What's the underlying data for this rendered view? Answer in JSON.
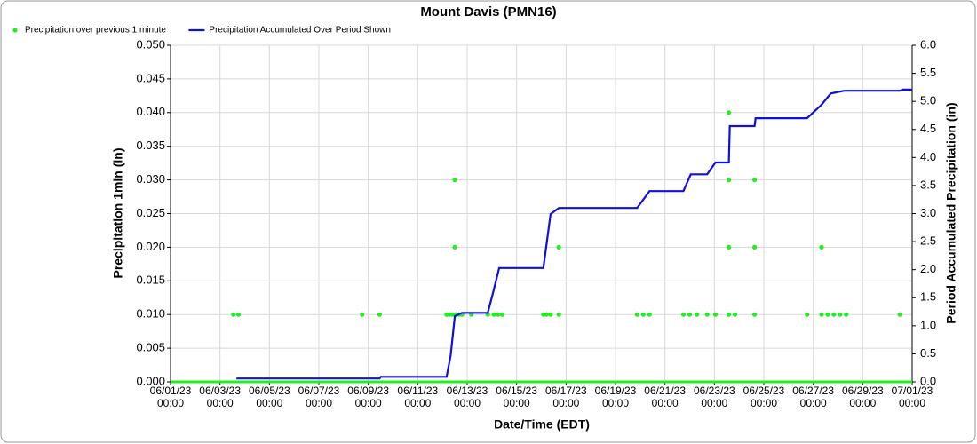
{
  "chart_data": {
    "type": "line",
    "title": "Mount Davis (PMN16)",
    "x_label": "Date/Time (EDT)",
    "y_label": "Precipitation 1min (in)",
    "y2_label": "Period Accumulated Precipitation (in)",
    "xlim": [
      "06/01/23 00:00",
      "07/01/23 00:00"
    ],
    "xticks": [
      "06/01/23 00:00",
      "06/03/23 00:00",
      "06/05/23 00:00",
      "06/07/23 00:00",
      "06/09/23 00:00",
      "06/11/23 00:00",
      "06/13/23 00:00",
      "06/15/23 00:00",
      "06/17/23 00:00",
      "06/19/23 00:00",
      "06/21/23 00:00",
      "06/23/23 00:00",
      "06/25/23 00:00",
      "06/27/23 00:00",
      "06/29/23 00:00",
      "07/01/23 00:00"
    ],
    "ylim": [
      0,
      0.05
    ],
    "yticks": [
      {
        "value": 0,
        "label": "0.000"
      },
      {
        "value": 0.005,
        "label": "0.005"
      },
      {
        "value": 0.01,
        "label": "0.010"
      },
      {
        "value": 0.015,
        "label": "0.015"
      },
      {
        "value": 0.02,
        "label": "0.020"
      },
      {
        "value": 0.025,
        "label": "0.025"
      },
      {
        "value": 0.03,
        "label": "0.030"
      },
      {
        "value": 0.035,
        "label": "0.035"
      },
      {
        "value": 0.04,
        "label": "0.040"
      },
      {
        "value": 0.045,
        "label": "0.045"
      },
      {
        "value": 0.05,
        "label": "0.050"
      }
    ],
    "y2lim": [
      0,
      6
    ],
    "y2ticks": [
      {
        "value": 0,
        "label": "0.0"
      },
      {
        "value": 0.5,
        "label": "0.5"
      },
      {
        "value": 1,
        "label": "1.0"
      },
      {
        "value": 1.5,
        "label": "1.5"
      },
      {
        "value": 2,
        "label": "2.0"
      },
      {
        "value": 2.5,
        "label": "2.5"
      },
      {
        "value": 3,
        "label": "3.0"
      },
      {
        "value": 3.5,
        "label": "3.5"
      },
      {
        "value": 4,
        "label": "4.0"
      },
      {
        "value": 4.5,
        "label": "4.5"
      },
      {
        "value": 5,
        "label": "5.0"
      },
      {
        "value": 5.5,
        "label": "5.5"
      },
      {
        "value": 6,
        "label": "6.0"
      }
    ],
    "grid": true,
    "series": [
      {
        "name": "Precipitation over previous 1 minute",
        "color": "#22ee22",
        "kind": "scatter",
        "x": [
          "06/03/23 13:00",
          "06/03/23 18:00",
          "06/08/23 18:00",
          "06/09/23 11:00",
          "06/12/23 04:00",
          "06/12/23 07:00",
          "06/12/23 10:00",
          "06/12/23 12:00",
          "06/12/23 12:00",
          "06/12/23 13:00",
          "06/12/23 16:00",
          "06/12/23 19:00",
          "06/13/23 04:00",
          "06/13/23 20:00",
          "06/14/23 02:00",
          "06/14/23 06:00",
          "06/14/23 10:00",
          "06/16/23 02:00",
          "06/16/23 05:00",
          "06/16/23 09:00",
          "06/16/23 17:00",
          "06/16/23 17:00",
          "06/19/23 21:00",
          "06/20/23 03:00",
          "06/20/23 09:00",
          "06/21/23 18:00",
          "06/22/23 00:00",
          "06/22/23 07:00",
          "06/22/23 17:00",
          "06/23/23 01:00",
          "06/23/23 14:00",
          "06/23/23 14:00",
          "06/23/23 14:00",
          "06/23/23 14:00",
          "06/23/23 20:00",
          "06/24/23 15:00",
          "06/24/23 15:00",
          "06/24/23 15:00",
          "06/26/23 18:00",
          "06/27/23 08:00",
          "06/27/23 08:00",
          "06/27/23 14:00",
          "06/27/23 20:00",
          "06/28/23 02:00",
          "06/28/23 08:00",
          "06/30/23 12:00"
        ],
        "values": [
          0.01,
          0.01,
          0.01,
          0.01,
          0.01,
          0.01,
          0.01,
          0.03,
          0.02,
          0.01,
          0.01,
          0.01,
          0.01,
          0.01,
          0.01,
          0.01,
          0.01,
          0.01,
          0.01,
          0.01,
          0.02,
          0.01,
          0.01,
          0.01,
          0.01,
          0.01,
          0.01,
          0.01,
          0.01,
          0.01,
          0.04,
          0.03,
          0.02,
          0.01,
          0.01,
          0.03,
          0.02,
          0.01,
          0.01,
          0.02,
          0.01,
          0.01,
          0.01,
          0.01,
          0.01,
          0.01
        ]
      },
      {
        "name": "Precipitation Accumulated Over Period Shown",
        "color": "#1010dd",
        "kind": "line",
        "axis": "y2",
        "x": [
          "06/03/23 16:00",
          "06/09/23 11:00",
          "06/09/23 12:00",
          "06/12/23 04:00",
          "06/12/23 08:00",
          "06/12/23 12:00",
          "06/12/23 19:00",
          "06/13/23 20:00",
          "06/14/23 01:00",
          "06/14/23 07:00",
          "06/16/23 02:00",
          "06/16/23 09:00",
          "06/16/23 17:00",
          "06/19/23 21:00",
          "06/20/23 09:00",
          "06/21/23 18:00",
          "06/22/23 01:00",
          "06/22/23 17:00",
          "06/23/23 01:00",
          "06/23/23 14:00",
          "06/23/23 15:00",
          "06/24/23 15:00",
          "06/24/23 16:00",
          "06/26/23 18:00",
          "06/27/23 08:00",
          "06/27/23 17:00",
          "06/28/23 06:00",
          "06/30/23 12:00",
          "06/30/23 15:00",
          "07/01/23 00:00"
        ],
        "values": [
          0.06,
          0.06,
          0.09,
          0.09,
          0.47,
          1.17,
          1.23,
          1.23,
          1.58,
          2.03,
          2.03,
          2.99,
          3.1,
          3.1,
          3.4,
          3.4,
          3.7,
          3.7,
          3.91,
          3.91,
          4.56,
          4.56,
          4.7,
          4.7,
          4.94,
          5.14,
          5.19,
          5.19,
          5.21,
          5.21
        ]
      }
    ]
  }
}
